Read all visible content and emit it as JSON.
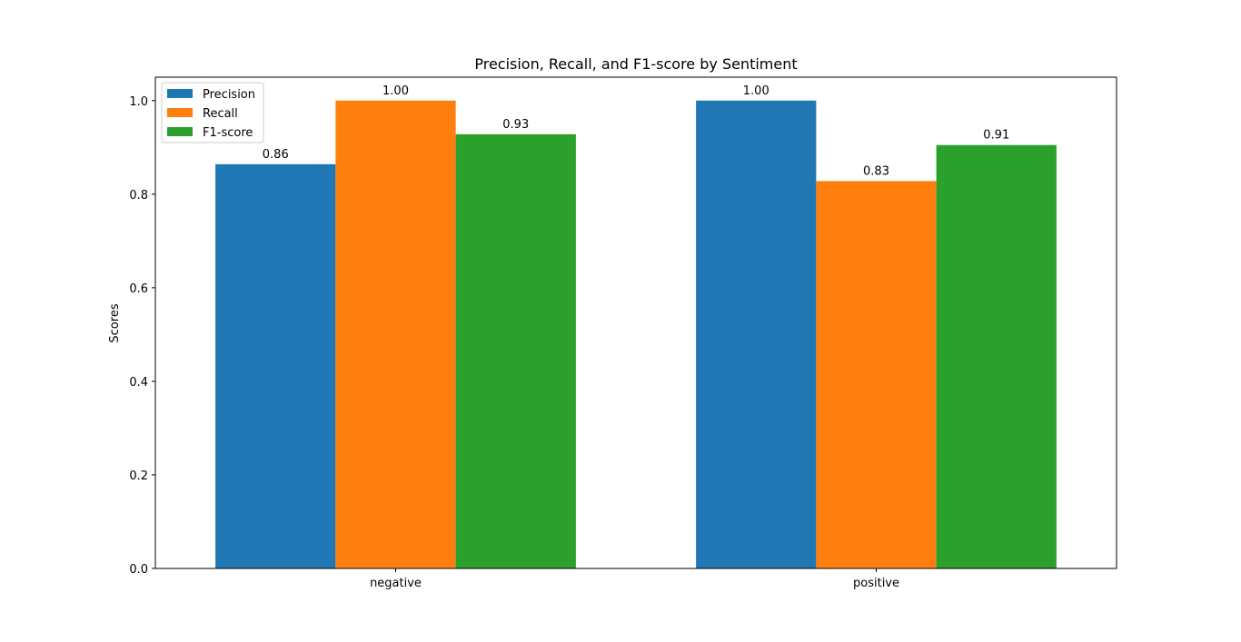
{
  "chart_data": {
    "type": "bar",
    "title": "Precision, Recall, and F1-score by Sentiment",
    "xlabel": "",
    "ylabel": "Scores",
    "categories": [
      "negative",
      "positive"
    ],
    "series": [
      {
        "name": "Precision",
        "values": [
          0.864,
          1.0
        ],
        "labels": [
          "0.86",
          "1.00"
        ],
        "color": "#1f77b4"
      },
      {
        "name": "Recall",
        "values": [
          1.0,
          0.828
        ],
        "labels": [
          "1.00",
          "0.83"
        ],
        "color": "#ff7f0e"
      },
      {
        "name": "F1-score",
        "values": [
          0.928,
          0.905
        ],
        "labels": [
          "0.93",
          "0.91"
        ],
        "color": "#2ca02c"
      }
    ],
    "ylim": [
      0,
      1.05
    ],
    "yticks": [
      "0.0",
      "0.2",
      "0.4",
      "0.6",
      "0.8",
      "1.0"
    ],
    "grid": false,
    "legend_position": "top-left"
  }
}
